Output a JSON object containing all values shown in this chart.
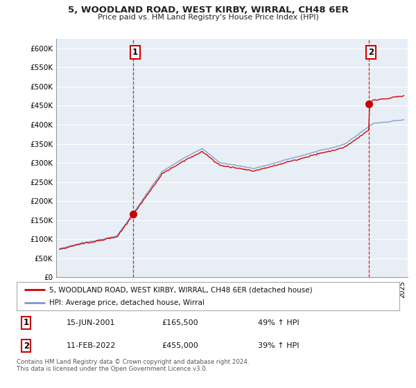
{
  "title": "5, WOODLAND ROAD, WEST KIRBY, WIRRAL, CH48 6ER",
  "subtitle": "Price paid vs. HM Land Registry's House Price Index (HPI)",
  "ylim": [
    0,
    625000
  ],
  "yticks": [
    0,
    50000,
    100000,
    150000,
    200000,
    250000,
    300000,
    350000,
    400000,
    450000,
    500000,
    550000,
    600000
  ],
  "ytick_labels": [
    "£0",
    "£50K",
    "£100K",
    "£150K",
    "£200K",
    "£250K",
    "£300K",
    "£350K",
    "£400K",
    "£450K",
    "£500K",
    "£550K",
    "£600K"
  ],
  "sale1_date": 2001.46,
  "sale1_price": 165500,
  "sale1_label": "1",
  "sale2_date": 2022.12,
  "sale2_price": 455000,
  "sale2_label": "2",
  "legend_line1": "5, WOODLAND ROAD, WEST KIRBY, WIRRAL, CH48 6ER (detached house)",
  "legend_line2": "HPI: Average price, detached house, Wirral",
  "table_row1": [
    "1",
    "15-JUN-2001",
    "£165,500",
    "49% ↑ HPI"
  ],
  "table_row2": [
    "2",
    "11-FEB-2022",
    "£455,000",
    "39% ↑ HPI"
  ],
  "footer": "Contains HM Land Registry data © Crown copyright and database right 2024.\nThis data is licensed under the Open Government Licence v3.0.",
  "line_color_red": "#cc0000",
  "line_color_blue": "#7799cc",
  "chart_bg": "#e8eef5",
  "background_color": "#ffffff",
  "grid_color": "#ffffff"
}
